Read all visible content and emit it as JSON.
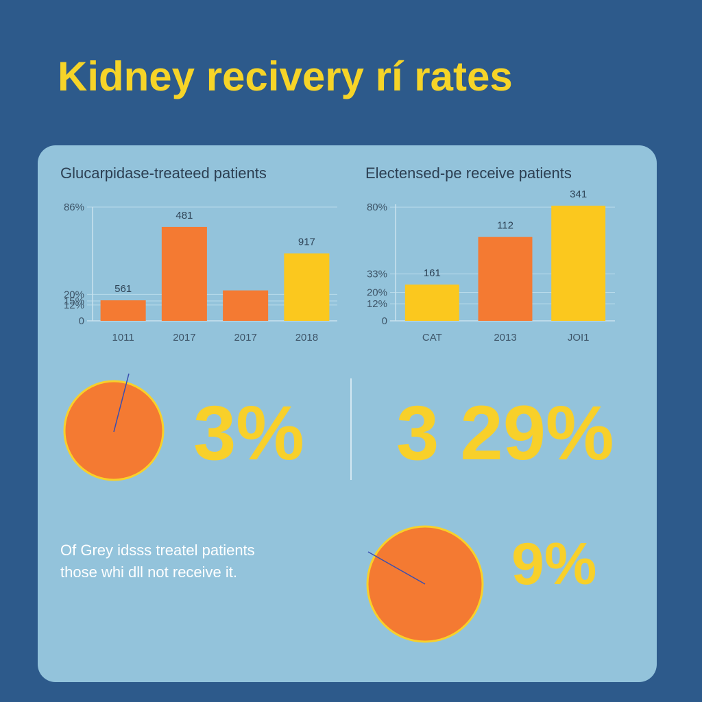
{
  "title": "Kidney  recivery rí rates",
  "chart_data": [
    {
      "type": "bar",
      "title": "Glucarpidase-treateed patients",
      "categories": [
        "1011",
        "2017",
        "2017",
        "2018"
      ],
      "values": [
        15.5,
        71,
        23,
        51
      ],
      "colors": [
        "#f47a32",
        "#f47a32",
        "#f47a32",
        "#fbc81e"
      ],
      "bar_notes": [
        "561",
        "481",
        null,
        "917"
      ],
      "ylim": [
        0,
        86
      ],
      "yticks": [
        0,
        {
          "value": 12,
          "label": "12%"
        },
        {
          "value": 15,
          "label": "15%"
        },
        {
          "value": 20,
          "label": "20%"
        },
        {
          "value": 86,
          "label": "86%"
        }
      ],
      "grid": true
    },
    {
      "type": "bar",
      "title": "Electensed-pe receive patients",
      "categories": [
        "CAT",
        "2013",
        "JOI1"
      ],
      "values": [
        25.5,
        59,
        81
      ],
      "colors": [
        "#fbc81e",
        "#f47a32",
        "#fbc81e"
      ],
      "bar_notes": [
        "161",
        "112",
        "341"
      ],
      "ylim": [
        0,
        82
      ],
      "yticks": [
        0,
        {
          "value": 12,
          "label": "12%"
        },
        {
          "value": 33,
          "label": "33%"
        },
        {
          "value": 20,
          "label": "20%"
        },
        {
          "value": 80,
          "label": "80%"
        }
      ],
      "grid": true
    }
  ],
  "stats": [
    "3%",
    "3 29%",
    "9%"
  ],
  "note": [
    "Of Grey idsss treatel patients",
    "those whi dll not receive it."
  ]
}
